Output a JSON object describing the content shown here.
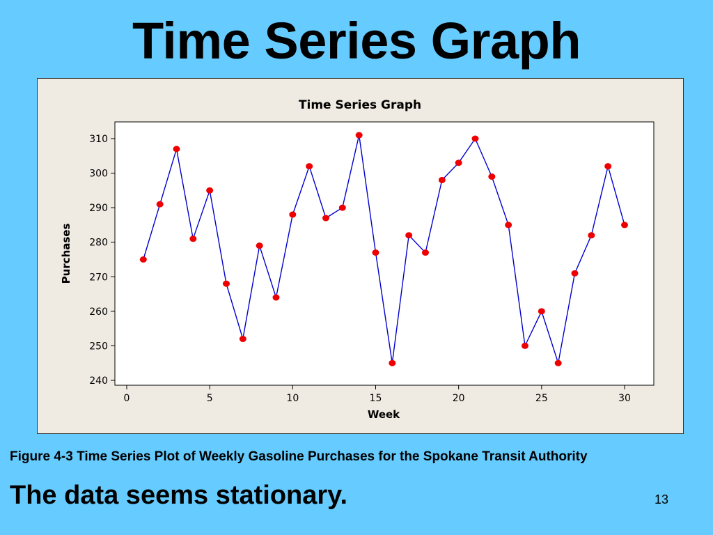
{
  "slide": {
    "title": "Time Series Graph",
    "caption": "Figure 4-3 Time Series Plot of Weekly Gasoline Purchases for the Spokane Transit Authority",
    "statement": "The data seems stationary.",
    "page_number": "13"
  },
  "colors": {
    "background": "#66ccff",
    "frame": "#efebe2",
    "line": "#0000cc",
    "marker": "#ee0000"
  },
  "chart_data": {
    "type": "line",
    "title": "Time Series Graph",
    "xlabel": "Week",
    "ylabel": "Purchases",
    "xlim": [
      0,
      30
    ],
    "ylim": [
      240,
      310
    ],
    "xticks": [
      0,
      5,
      10,
      15,
      20,
      25,
      30
    ],
    "yticks": [
      240,
      250,
      260,
      270,
      280,
      290,
      300,
      310
    ],
    "grid": false,
    "x": [
      1,
      2,
      3,
      4,
      5,
      6,
      7,
      8,
      9,
      10,
      11,
      12,
      13,
      14,
      15,
      16,
      17,
      18,
      19,
      20,
      21,
      22,
      23,
      24,
      25,
      26,
      27,
      28,
      29,
      30
    ],
    "series": [
      {
        "values": [
          275,
          291,
          307,
          281,
          295,
          268,
          252,
          279,
          264,
          288,
          302,
          287,
          290,
          311,
          277,
          245,
          282,
          277,
          298,
          303,
          310,
          299,
          285,
          250,
          260,
          245,
          271,
          282,
          302,
          285
        ]
      }
    ]
  }
}
